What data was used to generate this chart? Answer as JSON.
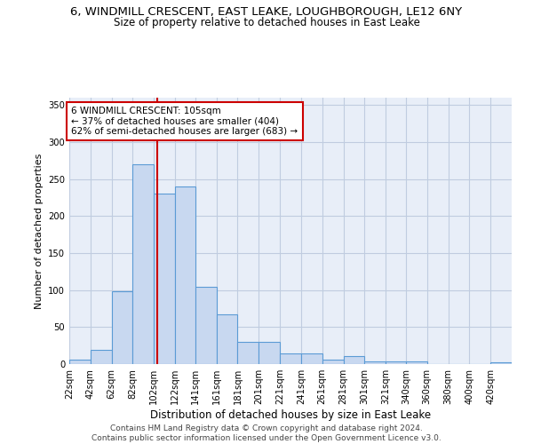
{
  "title": "6, WINDMILL CRESCENT, EAST LEAKE, LOUGHBOROUGH, LE12 6NY",
  "subtitle": "Size of property relative to detached houses in East Leake",
  "xlabel": "Distribution of detached houses by size in East Leake",
  "ylabel": "Number of detached properties",
  "bar_labels": [
    "22sqm",
    "42sqm",
    "62sqm",
    "82sqm",
    "102sqm",
    "122sqm",
    "141sqm",
    "161sqm",
    "181sqm",
    "201sqm",
    "221sqm",
    "241sqm",
    "261sqm",
    "281sqm",
    "301sqm",
    "321sqm",
    "340sqm",
    "360sqm",
    "380sqm",
    "400sqm",
    "420sqm"
  ],
  "bar_values": [
    6,
    19,
    99,
    270,
    231,
    240,
    104,
    67,
    30,
    30,
    15,
    15,
    6,
    11,
    4,
    4,
    4,
    0,
    0,
    0,
    3
  ],
  "bar_color": "#c8d8f0",
  "bar_edge_color": "#5b9bd5",
  "vline_x": 105,
  "vline_color": "#cc0000",
  "annotation_line1": "6 WINDMILL CRESCENT: 105sqm",
  "annotation_line2": "← 37% of detached houses are smaller (404)",
  "annotation_line3": "62% of semi-detached houses are larger (683) →",
  "annotation_box_color": "#ffffff",
  "annotation_box_edge_color": "#cc0000",
  "ylim": [
    0,
    360
  ],
  "yticks": [
    0,
    50,
    100,
    150,
    200,
    250,
    300,
    350
  ],
  "grid_color": "#c0cce0",
  "background_color": "#e8eef8",
  "footer": "Contains HM Land Registry data © Crown copyright and database right 2024.\nContains public sector information licensed under the Open Government Licence v3.0.",
  "left_edges": [
    22,
    42,
    62,
    82,
    102,
    122,
    141,
    161,
    181,
    201,
    221,
    241,
    261,
    281,
    301,
    321,
    340,
    360,
    380,
    400,
    420
  ],
  "xlim_right": 440
}
